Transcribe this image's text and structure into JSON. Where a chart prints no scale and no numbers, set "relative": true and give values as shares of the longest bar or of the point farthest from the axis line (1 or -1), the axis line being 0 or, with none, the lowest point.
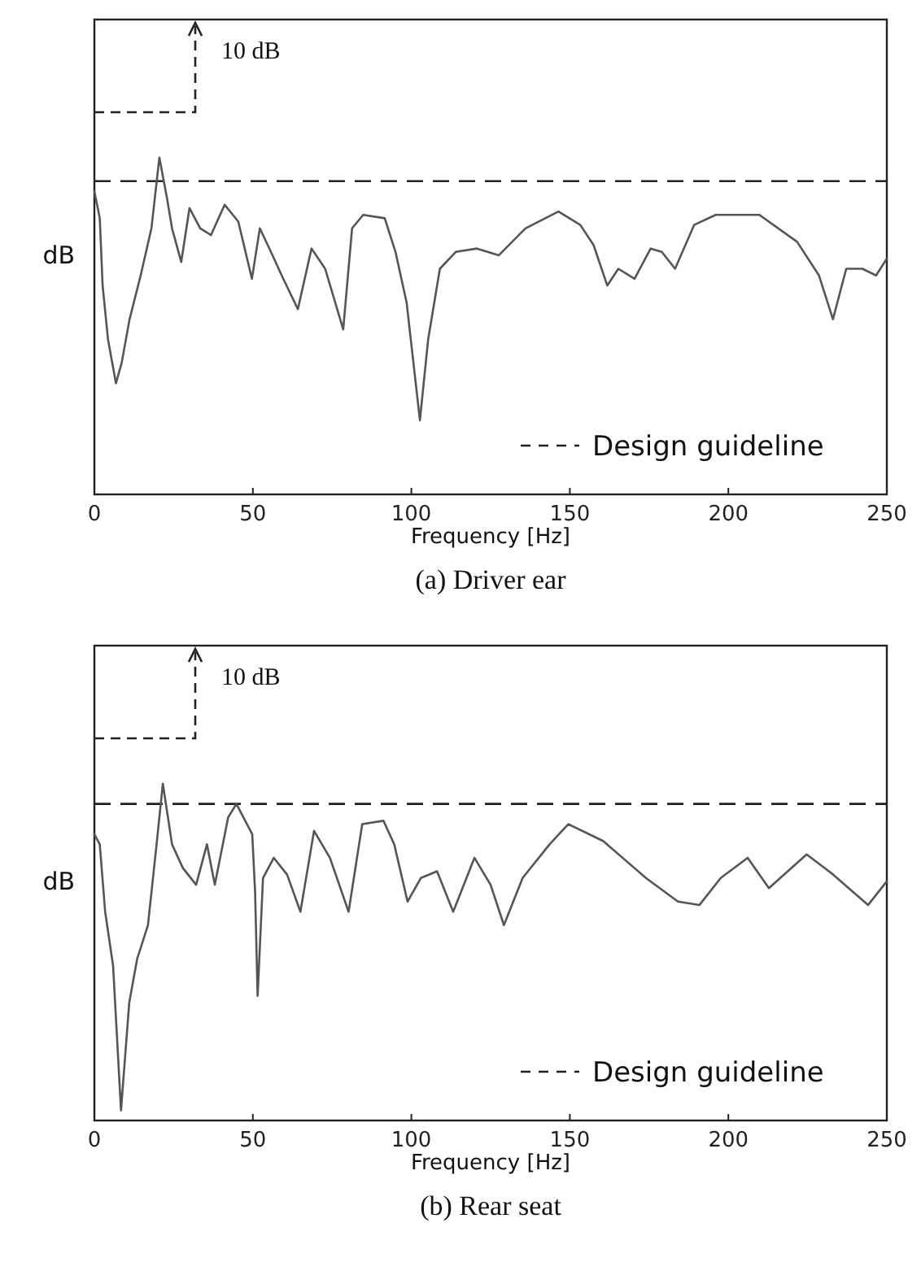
{
  "chart_data": [
    {
      "type": "line",
      "title": "(a)  Driver ear",
      "xlabel": "Frequency [Hz]",
      "ylabel": "dB",
      "relative": true,
      "xlim": [
        0,
        250
      ],
      "xticks": [
        0,
        50,
        100,
        150,
        200,
        250
      ],
      "annotations": [
        "10 dB"
      ],
      "ref_lines": [
        {
          "axis": "y",
          "value": 0.93,
          "label": "Design guideline",
          "line_style": "dashed",
          "color": "#222222"
        }
      ],
      "series": [
        {
          "color": "#555555",
          "x": [
            0,
            1.7,
            2.6,
            4.3,
            6.8,
            8.6,
            11.1,
            14.6,
            18,
            20.5,
            22.9,
            24.5,
            27.4,
            30,
            33.4,
            36.8,
            41.1,
            45.4,
            49.7,
            52.2,
            55.7,
            59.1,
            64.2,
            68.5,
            72.8,
            78.5,
            81.3,
            84.8,
            91.6,
            95,
            98.5,
            102.7,
            105.3,
            109,
            114,
            120.7,
            127.6,
            136,
            146.4,
            153.3,
            157.5,
            161.8,
            165.3,
            170.4,
            175.5,
            179,
            183.2,
            189.2,
            196,
            209.8,
            221.7,
            228.6,
            233,
            237.2,
            242.3,
            246.6,
            250
          ],
          "values": [
            0.9,
            0.82,
            0.62,
            0.46,
            0.33,
            0.39,
            0.52,
            0.65,
            0.79,
            1.0,
            0.88,
            0.79,
            0.69,
            0.85,
            0.79,
            0.77,
            0.86,
            0.81,
            0.64,
            0.79,
            0.72,
            0.65,
            0.55,
            0.73,
            0.67,
            0.49,
            0.79,
            0.83,
            0.82,
            0.72,
            0.57,
            0.22,
            0.46,
            0.67,
            0.72,
            0.73,
            0.71,
            0.79,
            0.84,
            0.8,
            0.74,
            0.62,
            0.67,
            0.64,
            0.73,
            0.72,
            0.67,
            0.8,
            0.83,
            0.83,
            0.75,
            0.65,
            0.52,
            0.67,
            0.67,
            0.65,
            0.7
          ]
        }
      ]
    },
    {
      "type": "line",
      "title": "(b)  Rear seat",
      "xlabel": "Frequency [Hz]",
      "ylabel": "dB",
      "relative": true,
      "xlim": [
        0,
        250
      ],
      "xticks": [
        0,
        50,
        100,
        150,
        200,
        250
      ],
      "annotations": [
        "10 dB"
      ],
      "ref_lines": [
        {
          "axis": "y",
          "value": 0.94,
          "label": "Design guideline",
          "line_style": "dashed",
          "color": "#222222"
        }
      ],
      "series": [
        {
          "color": "#555555",
          "x": [
            0,
            1.7,
            3.4,
            5.9,
            8.4,
            11,
            13.5,
            16.9,
            19.4,
            21.6,
            24.5,
            27.9,
            32.1,
            35.5,
            38,
            42.2,
            44.8,
            49.8,
            50.7,
            51.5,
            53.2,
            56.6,
            60.8,
            65,
            69.3,
            74.3,
            80.2,
            84.5,
            91.2,
            94.6,
            98.8,
            103,
            108.1,
            113.2,
            119.9,
            125,
            129.2,
            135.1,
            143.6,
            149.5,
            160.5,
            174,
            184.1,
            190.9,
            197.6,
            206.1,
            212.8,
            224.7,
            233.1,
            244.1,
            250
          ],
          "values": [
            0.85,
            0.82,
            0.62,
            0.46,
            0.03,
            0.35,
            0.48,
            0.58,
            0.8,
            1.0,
            0.82,
            0.75,
            0.7,
            0.82,
            0.7,
            0.9,
            0.94,
            0.85,
            0.68,
            0.37,
            0.72,
            0.78,
            0.73,
            0.62,
            0.86,
            0.78,
            0.62,
            0.88,
            0.89,
            0.82,
            0.65,
            0.72,
            0.74,
            0.62,
            0.78,
            0.7,
            0.58,
            0.72,
            0.82,
            0.88,
            0.83,
            0.72,
            0.65,
            0.64,
            0.72,
            0.78,
            0.69,
            0.79,
            0.73,
            0.64,
            0.71
          ]
        }
      ]
    }
  ]
}
